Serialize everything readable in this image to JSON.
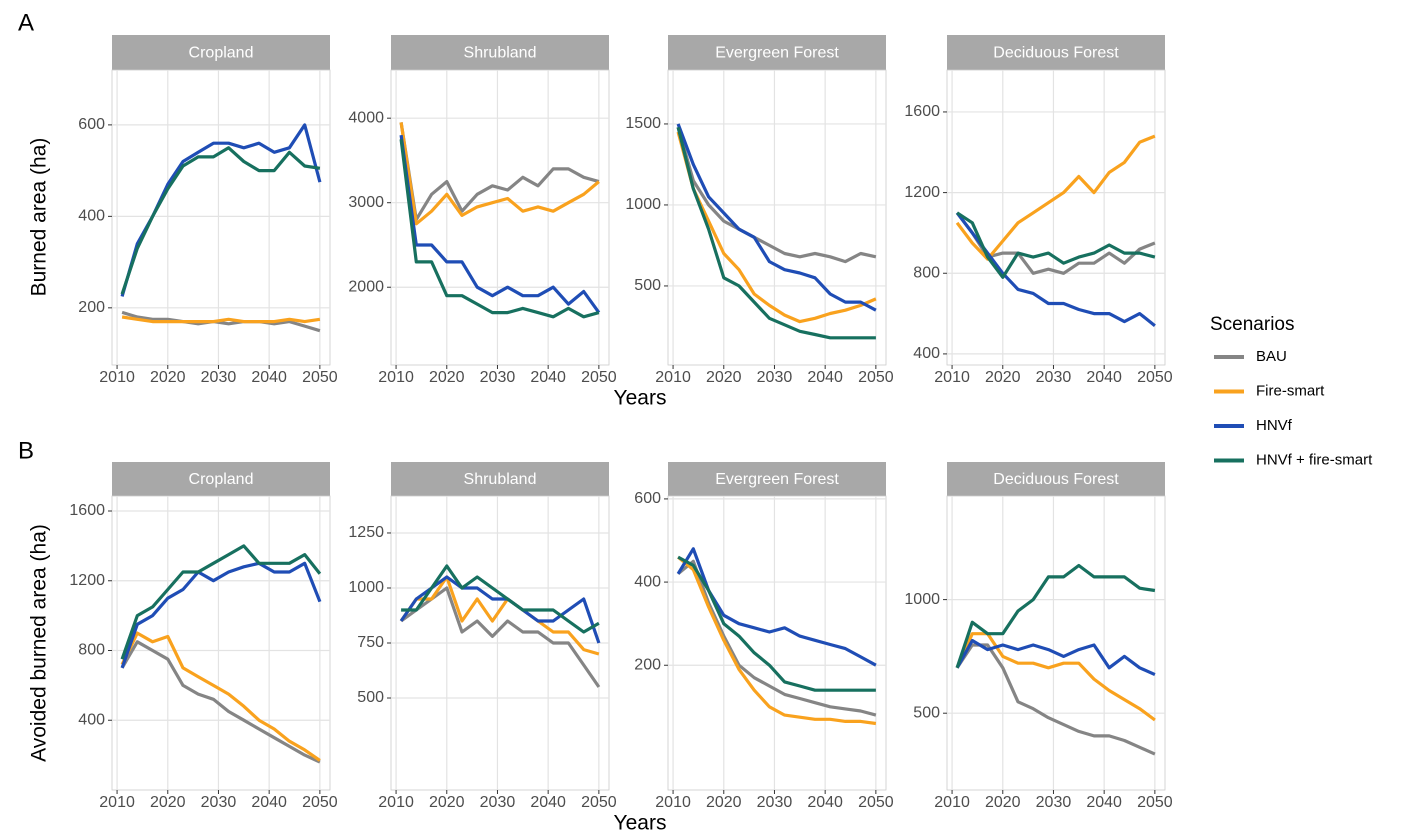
{
  "rows": [
    {
      "letter": "A",
      "ylabel": "Burned area (ha)",
      "xlabel": "Years"
    },
    {
      "letter": "B",
      "ylabel": "Avoided burned area (ha)",
      "xlabel": "Years"
    }
  ],
  "legend_title": "Scenarios",
  "chart_data": [
    {
      "type": "line",
      "title": "Cropland",
      "x": [
        2011,
        2014,
        2017,
        2020,
        2023,
        2026,
        2029,
        2032,
        2035,
        2038,
        2041,
        2044,
        2047,
        2050
      ],
      "xlim": [
        2009,
        2052
      ],
      "xticks": [
        2010,
        2020,
        2030,
        2040,
        2050
      ],
      "ylim": [
        75,
        720
      ],
      "yticks": [
        200,
        400,
        600
      ],
      "grid": true,
      "series": [
        {
          "name": "BAU",
          "color": "#858585",
          "values": [
            190,
            180,
            175,
            175,
            170,
            165,
            170,
            165,
            170,
            170,
            165,
            170,
            160,
            150
          ]
        },
        {
          "name": "Fire-smart",
          "color": "#f9a21e",
          "values": [
            180,
            175,
            170,
            170,
            170,
            170,
            170,
            175,
            170,
            170,
            170,
            175,
            170,
            175
          ]
        },
        {
          "name": "HNVf",
          "color": "#1f4db5",
          "values": [
            225,
            340,
            400,
            470,
            520,
            540,
            560,
            560,
            550,
            560,
            540,
            550,
            600,
            475
          ]
        },
        {
          "name": "HNVf + fire-smart",
          "color": "#17705f",
          "values": [
            230,
            330,
            400,
            460,
            510,
            530,
            530,
            550,
            520,
            500,
            500,
            540,
            510,
            505
          ]
        }
      ]
    },
    {
      "type": "line",
      "title": "Shrubland",
      "x": [
        2011,
        2014,
        2017,
        2020,
        2023,
        2026,
        2029,
        2032,
        2035,
        2038,
        2041,
        2044,
        2047,
        2050
      ],
      "xlim": [
        2009,
        2052
      ],
      "xticks": [
        2010,
        2020,
        2030,
        2040,
        2050
      ],
      "ylim": [
        1080,
        4570
      ],
      "yticks": [
        2000,
        3000,
        4000
      ],
      "grid": true,
      "series": [
        {
          "name": "BAU",
          "color": "#858585",
          "values": [
            3950,
            2800,
            3100,
            3250,
            2900,
            3100,
            3200,
            3150,
            3300,
            3200,
            3400,
            3400,
            3300,
            3250
          ]
        },
        {
          "name": "Fire-smart",
          "color": "#f9a21e",
          "values": [
            3950,
            2750,
            2900,
            3100,
            2850,
            2950,
            3000,
            3050,
            2900,
            2950,
            2900,
            3000,
            3100,
            3250
          ]
        },
        {
          "name": "HNVf",
          "color": "#1f4db5",
          "values": [
            3800,
            2500,
            2500,
            2300,
            2300,
            2000,
            1900,
            2000,
            1900,
            1900,
            2000,
            1800,
            1950,
            1700
          ]
        },
        {
          "name": "HNVf + fire-smart",
          "color": "#17705f",
          "values": [
            3750,
            2300,
            2300,
            1900,
            1900,
            1800,
            1700,
            1700,
            1750,
            1700,
            1650,
            1750,
            1650,
            1700
          ]
        }
      ]
    },
    {
      "type": "line",
      "title": "Evergreen Forest",
      "x": [
        2011,
        2014,
        2017,
        2020,
        2023,
        2026,
        2029,
        2032,
        2035,
        2038,
        2041,
        2044,
        2047,
        2050
      ],
      "xlim": [
        2009,
        2052
      ],
      "xticks": [
        2010,
        2020,
        2030,
        2040,
        2050
      ],
      "ylim": [
        12,
        1833
      ],
      "yticks": [
        500,
        1000,
        1500
      ],
      "grid": true,
      "series": [
        {
          "name": "BAU",
          "color": "#858585",
          "values": [
            1480,
            1150,
            1000,
            900,
            850,
            800,
            750,
            700,
            680,
            700,
            680,
            650,
            700,
            680
          ]
        },
        {
          "name": "Fire-smart",
          "color": "#f9a21e",
          "values": [
            1450,
            1100,
            900,
            700,
            600,
            450,
            380,
            320,
            280,
            300,
            330,
            350,
            380,
            420
          ]
        },
        {
          "name": "HNVf",
          "color": "#1f4db5",
          "values": [
            1500,
            1250,
            1050,
            950,
            850,
            800,
            650,
            600,
            580,
            550,
            450,
            400,
            400,
            350
          ]
        },
        {
          "name": "HNVf + fire-smart",
          "color": "#17705f",
          "values": [
            1480,
            1100,
            850,
            550,
            500,
            400,
            300,
            260,
            220,
            200,
            180,
            180,
            180,
            180
          ]
        }
      ]
    },
    {
      "type": "line",
      "title": "Deciduous Forest",
      "x": [
        2011,
        2014,
        2017,
        2020,
        2023,
        2026,
        2029,
        2032,
        2035,
        2038,
        2041,
        2044,
        2047,
        2050
      ],
      "xlim": [
        2009,
        2052
      ],
      "xticks": [
        2010,
        2020,
        2030,
        2040,
        2050
      ],
      "ylim": [
        345,
        1808
      ],
      "yticks": [
        400,
        800,
        1200,
        1600
      ],
      "grid": true,
      "series": [
        {
          "name": "BAU",
          "color": "#858585",
          "values": [
            1100,
            1000,
            880,
            900,
            900,
            800,
            820,
            800,
            850,
            850,
            900,
            850,
            920,
            950
          ]
        },
        {
          "name": "Fire-smart",
          "color": "#f9a21e",
          "values": [
            1050,
            950,
            870,
            960,
            1050,
            1100,
            1150,
            1200,
            1280,
            1200,
            1300,
            1350,
            1450,
            1480
          ]
        },
        {
          "name": "HNVf",
          "color": "#1f4db5",
          "values": [
            1100,
            1000,
            900,
            800,
            720,
            700,
            650,
            650,
            620,
            600,
            600,
            560,
            600,
            540
          ]
        },
        {
          "name": "HNVf + fire-smart",
          "color": "#17705f",
          "values": [
            1100,
            1050,
            880,
            780,
            900,
            880,
            900,
            850,
            880,
            900,
            940,
            900,
            900,
            880
          ]
        }
      ]
    },
    {
      "type": "line",
      "title": "Cropland",
      "x": [
        2011,
        2014,
        2017,
        2020,
        2023,
        2026,
        2029,
        2032,
        2035,
        2038,
        2041,
        2044,
        2047,
        2050
      ],
      "xlim": [
        2009,
        2052
      ],
      "xticks": [
        2010,
        2020,
        2030,
        2040,
        2050
      ],
      "ylim": [
        0,
        1686
      ],
      "yticks": [
        400,
        800,
        1200,
        1600
      ],
      "grid": true,
      "series": [
        {
          "name": "BAU",
          "color": "#858585",
          "values": [
            700,
            850,
            800,
            750,
            600,
            550,
            520,
            450,
            400,
            350,
            300,
            250,
            200,
            160
          ]
        },
        {
          "name": "Fire-smart",
          "color": "#f9a21e",
          "values": [
            720,
            900,
            850,
            880,
            700,
            650,
            600,
            550,
            480,
            400,
            350,
            280,
            230,
            170
          ]
        },
        {
          "name": "HNVf",
          "color": "#1f4db5",
          "values": [
            700,
            950,
            1000,
            1100,
            1150,
            1250,
            1200,
            1250,
            1280,
            1300,
            1250,
            1250,
            1300,
            1080
          ]
        },
        {
          "name": "HNVf + fire-smart",
          "color": "#17705f",
          "values": [
            750,
            1000,
            1050,
            1150,
            1250,
            1250,
            1300,
            1350,
            1400,
            1300,
            1300,
            1300,
            1350,
            1240
          ]
        }
      ]
    },
    {
      "type": "line",
      "title": "Shrubland",
      "x": [
        2011,
        2014,
        2017,
        2020,
        2023,
        2026,
        2029,
        2032,
        2035,
        2038,
        2041,
        2044,
        2047,
        2050
      ],
      "xlim": [
        2009,
        2052
      ],
      "xticks": [
        2010,
        2020,
        2030,
        2040,
        2050
      ],
      "ylim": [
        82,
        1418
      ],
      "yticks": [
        500,
        750,
        1000,
        1250
      ],
      "grid": true,
      "series": [
        {
          "name": "BAU",
          "color": "#858585",
          "values": [
            850,
            900,
            950,
            1000,
            800,
            850,
            780,
            850,
            800,
            800,
            750,
            750,
            650,
            550
          ]
        },
        {
          "name": "Fire-smart",
          "color": "#f9a21e",
          "values": [
            850,
            950,
            950,
            1050,
            850,
            950,
            850,
            950,
            900,
            850,
            800,
            800,
            720,
            700
          ]
        },
        {
          "name": "HNVf",
          "color": "#1f4db5",
          "values": [
            850,
            950,
            1000,
            1050,
            1000,
            1000,
            950,
            950,
            900,
            850,
            850,
            900,
            950,
            750
          ]
        },
        {
          "name": "HNVf + fire-smart",
          "color": "#17705f",
          "values": [
            900,
            900,
            1000,
            1100,
            1000,
            1050,
            1000,
            950,
            900,
            900,
            900,
            850,
            800,
            840
          ]
        }
      ]
    },
    {
      "type": "line",
      "title": "Evergreen Forest",
      "x": [
        2011,
        2014,
        2017,
        2020,
        2023,
        2026,
        2029,
        2032,
        2035,
        2038,
        2041,
        2044,
        2047,
        2050
      ],
      "xlim": [
        2009,
        2052
      ],
      "xticks": [
        2010,
        2020,
        2030,
        2040,
        2050
      ],
      "ylim": [
        -100,
        607
      ],
      "yticks": [
        200,
        400,
        600
      ],
      "grid": true,
      "series": [
        {
          "name": "BAU",
          "color": "#858585",
          "values": [
            420,
            450,
            350,
            270,
            200,
            170,
            150,
            130,
            120,
            110,
            100,
            95,
            90,
            80
          ]
        },
        {
          "name": "Fire-smart",
          "color": "#f9a21e",
          "values": [
            460,
            430,
            340,
            260,
            190,
            140,
            100,
            80,
            75,
            70,
            70,
            65,
            65,
            60
          ]
        },
        {
          "name": "HNVf",
          "color": "#1f4db5",
          "values": [
            420,
            480,
            380,
            320,
            300,
            290,
            280,
            290,
            270,
            260,
            250,
            240,
            220,
            200
          ]
        },
        {
          "name": "HNVf + fire-smart",
          "color": "#17705f",
          "values": [
            460,
            440,
            380,
            300,
            270,
            230,
            200,
            160,
            150,
            140,
            140,
            140,
            140,
            140
          ]
        }
      ]
    },
    {
      "type": "line",
      "title": "Deciduous Forest",
      "x": [
        2011,
        2014,
        2017,
        2020,
        2023,
        2026,
        2029,
        2032,
        2035,
        2038,
        2041,
        2044,
        2047,
        2050
      ],
      "xlim": [
        2009,
        2052
      ],
      "xticks": [
        2010,
        2020,
        2030,
        2040,
        2050
      ],
      "ylim": [
        162,
        1456
      ],
      "yticks": [
        500,
        1000
      ],
      "grid": true,
      "series": [
        {
          "name": "BAU",
          "color": "#858585",
          "values": [
            700,
            800,
            800,
            700,
            550,
            520,
            480,
            450,
            420,
            400,
            400,
            380,
            350,
            320
          ]
        },
        {
          "name": "Fire-smart",
          "color": "#f9a21e",
          "values": [
            700,
            850,
            850,
            750,
            720,
            720,
            700,
            720,
            720,
            650,
            600,
            560,
            520,
            470
          ]
        },
        {
          "name": "HNVf",
          "color": "#1f4db5",
          "values": [
            700,
            820,
            780,
            800,
            780,
            800,
            780,
            750,
            780,
            800,
            700,
            750,
            700,
            670
          ]
        },
        {
          "name": "HNVf + fire-smart",
          "color": "#17705f",
          "values": [
            700,
            900,
            850,
            850,
            950,
            1000,
            1100,
            1100,
            1150,
            1100,
            1100,
            1100,
            1050,
            1040
          ]
        }
      ]
    }
  ]
}
